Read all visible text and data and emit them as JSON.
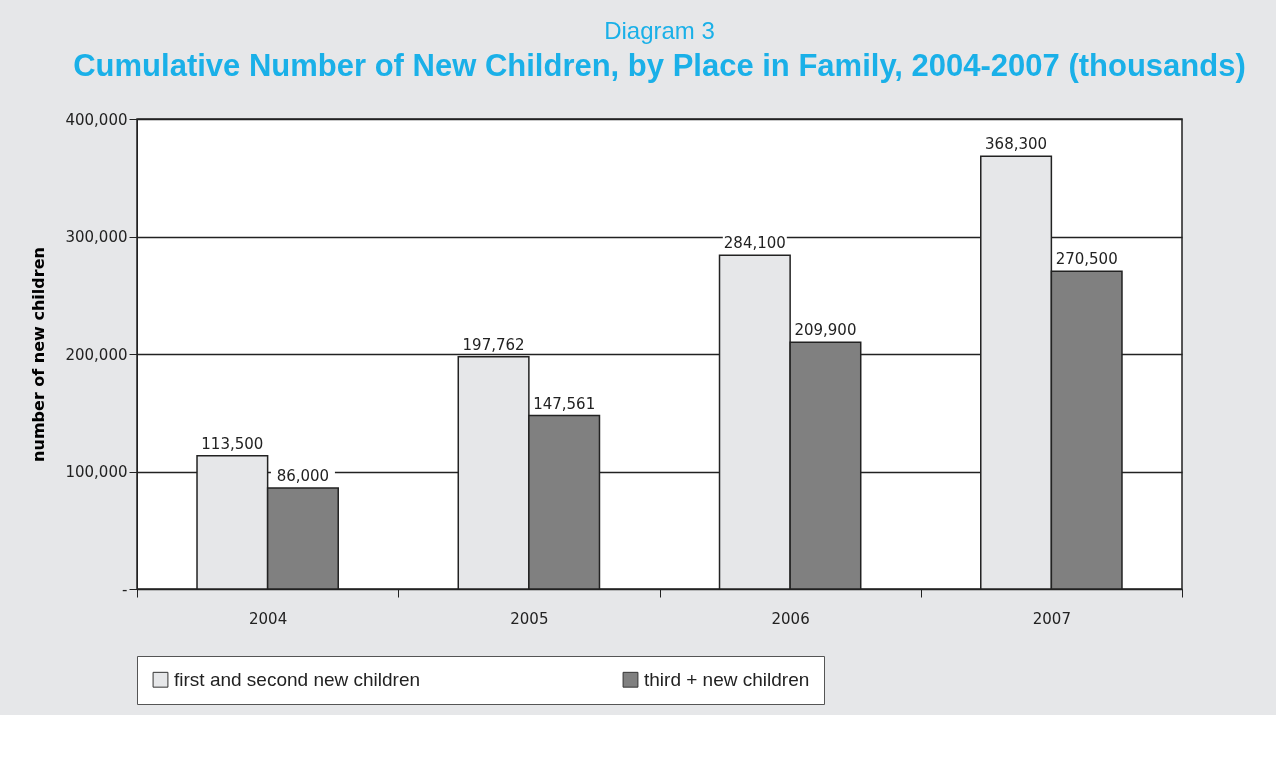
{
  "chart_data": {
    "type": "bar",
    "subtitle": "Diagram 3",
    "title": "Cumulative Number of New Children, by Place in Family, 2004-2007 (thousands)",
    "ylabel": "number of new children",
    "categories": [
      "2004",
      "2005",
      "2006",
      "2007"
    ],
    "series": [
      {
        "name": "first and second new children",
        "color": "#e6e7e9",
        "values": [
          113500,
          197762,
          284100,
          368300
        ],
        "value_labels": [
          "113,500",
          "197,762",
          "284,100",
          "368,300"
        ]
      },
      {
        "name": "third + new children",
        "color": "#808080",
        "values": [
          86000,
          147561,
          209900,
          270500
        ],
        "value_labels": [
          "86,000",
          "147,561",
          "209,900",
          "270,500"
        ]
      }
    ],
    "ylim": [
      0,
      400000
    ],
    "yticks": [
      {
        "value": 0,
        "label": "-"
      },
      {
        "value": 100000,
        "label": "100,000"
      },
      {
        "value": 200000,
        "label": "200,000"
      },
      {
        "value": 300000,
        "label": "300,000"
      },
      {
        "value": 400000,
        "label": "400,000"
      }
    ],
    "grid": "y",
    "legend": "bottom"
  }
}
